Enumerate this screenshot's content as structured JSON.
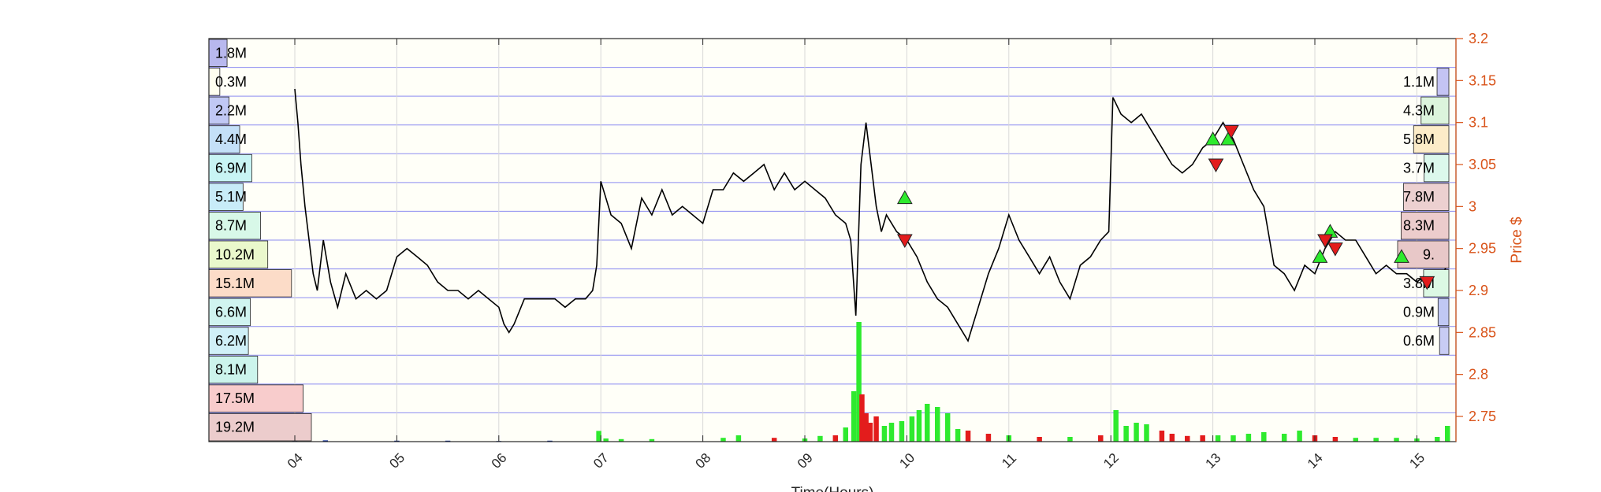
{
  "chart_data": {
    "type": "line",
    "xlabel": "Time(Hours)",
    "ylabel": "Price $",
    "x_ticks": [
      "04",
      "05",
      "06",
      "07",
      "08",
      "09",
      "10",
      "11",
      "12",
      "13",
      "14",
      "15"
    ],
    "xlim": [
      3.15,
      15.45
    ],
    "ylim": [
      2.72,
      3.2
    ],
    "y_ticks": [
      2.75,
      2.8,
      2.85,
      2.9,
      2.95,
      3.0,
      3.05,
      3.1,
      3.15,
      3.2
    ],
    "grid": true,
    "price_series": {
      "name": "",
      "x": [
        4.0,
        4.03,
        4.06,
        4.1,
        4.14,
        4.18,
        4.22,
        4.28,
        4.35,
        4.42,
        4.5,
        4.6,
        4.7,
        4.8,
        4.9,
        5.0,
        5.1,
        5.2,
        5.3,
        5.4,
        5.5,
        5.6,
        5.7,
        5.8,
        5.9,
        6.0,
        6.05,
        6.1,
        6.15,
        6.25,
        6.35,
        6.45,
        6.55,
        6.65,
        6.75,
        6.85,
        6.92,
        6.96,
        7.0,
        7.1,
        7.2,
        7.3,
        7.4,
        7.5,
        7.6,
        7.7,
        7.8,
        7.9,
        8.0,
        8.1,
        8.2,
        8.3,
        8.4,
        8.5,
        8.6,
        8.7,
        8.8,
        8.9,
        9.0,
        9.1,
        9.2,
        9.3,
        9.4,
        9.45,
        9.5,
        9.55,
        9.6,
        9.65,
        9.7,
        9.75,
        9.8,
        9.9,
        10.0,
        10.1,
        10.2,
        10.3,
        10.4,
        10.5,
        10.6,
        10.7,
        10.8,
        10.9,
        11.0,
        11.1,
        11.2,
        11.3,
        11.4,
        11.5,
        11.6,
        11.7,
        11.8,
        11.9,
        11.98,
        12.02,
        12.1,
        12.2,
        12.3,
        12.4,
        12.5,
        12.6,
        12.7,
        12.8,
        12.9,
        13.0,
        13.1,
        13.2,
        13.3,
        13.4,
        13.5,
        13.6,
        13.7,
        13.8,
        13.9,
        14.0,
        14.1,
        14.2,
        14.3,
        14.4,
        14.5,
        14.6,
        14.7,
        14.8,
        14.9,
        15.0,
        15.1,
        15.2,
        15.3
      ],
      "y": [
        3.14,
        3.1,
        3.05,
        3.0,
        2.96,
        2.92,
        2.9,
        2.96,
        2.91,
        2.88,
        2.92,
        2.89,
        2.9,
        2.89,
        2.9,
        2.94,
        2.95,
        2.94,
        2.93,
        2.91,
        2.9,
        2.9,
        2.89,
        2.9,
        2.89,
        2.88,
        2.86,
        2.85,
        2.86,
        2.89,
        2.89,
        2.89,
        2.89,
        2.88,
        2.89,
        2.89,
        2.9,
        2.93,
        3.03,
        2.99,
        2.98,
        2.95,
        3.01,
        2.99,
        3.02,
        2.99,
        3.0,
        2.99,
        2.98,
        3.02,
        3.02,
        3.04,
        3.03,
        3.04,
        3.05,
        3.02,
        3.04,
        3.02,
        3.03,
        3.02,
        3.01,
        2.99,
        2.98,
        2.96,
        2.87,
        3.05,
        3.1,
        3.05,
        3.0,
        2.97,
        2.99,
        2.97,
        2.96,
        2.94,
        2.91,
        2.89,
        2.88,
        2.86,
        2.84,
        2.88,
        2.92,
        2.95,
        2.99,
        2.96,
        2.94,
        2.92,
        2.94,
        2.91,
        2.89,
        2.93,
        2.94,
        2.96,
        2.97,
        3.13,
        3.11,
        3.1,
        3.11,
        3.09,
        3.07,
        3.05,
        3.04,
        3.05,
        3.07,
        3.08,
        3.1,
        3.08,
        3.05,
        3.02,
        3.0,
        2.93,
        2.92,
        2.9,
        2.93,
        2.92,
        2.95,
        2.97,
        2.96,
        2.96,
        2.94,
        2.92,
        2.93,
        2.92,
        2.92,
        2.91,
        2.92,
        2.91,
        2.93
      ]
    },
    "buy_markers": {
      "x": [
        9.98,
        13.0,
        13.15,
        14.05,
        14.15,
        14.85
      ],
      "y": [
        3.01,
        3.08,
        3.08,
        2.94,
        2.97,
        2.94
      ]
    },
    "sell_markers": {
      "x": [
        9.98,
        13.03,
        13.18,
        14.1,
        14.2,
        15.1
      ],
      "y": [
        2.96,
        3.05,
        3.09,
        2.96,
        2.95,
        2.91
      ]
    },
    "volume_bars": {
      "bar_width": 0.05,
      "x": [
        4.0,
        4.3,
        5.0,
        5.5,
        6.0,
        6.5,
        6.98,
        7.05,
        7.2,
        7.5,
        8.2,
        8.35,
        8.7,
        9.0,
        9.15,
        9.3,
        9.4,
        9.48,
        9.53,
        9.56,
        9.6,
        9.64,
        9.7,
        9.78,
        9.85,
        9.95,
        10.05,
        10.12,
        10.2,
        10.3,
        10.4,
        10.5,
        10.6,
        10.8,
        11.0,
        11.3,
        11.6,
        11.9,
        12.05,
        12.15,
        12.25,
        12.35,
        12.5,
        12.6,
        12.75,
        12.9,
        13.05,
        13.2,
        13.35,
        13.5,
        13.7,
        13.85,
        14.0,
        14.2,
        14.4,
        14.6,
        14.8,
        15.0,
        15.2,
        15.3
      ],
      "values": [
        0.006,
        0.004,
        0.003,
        0.003,
        0.002,
        0.003,
        0.034,
        0.01,
        0.008,
        0.008,
        0.012,
        0.02,
        0.012,
        0.01,
        0.018,
        0.02,
        0.045,
        0.16,
        0.38,
        0.15,
        0.09,
        0.06,
        0.08,
        0.05,
        0.06,
        0.065,
        0.08,
        0.1,
        0.12,
        0.11,
        0.09,
        0.04,
        0.035,
        0.025,
        0.02,
        0.015,
        0.015,
        0.02,
        0.1,
        0.05,
        0.06,
        0.055,
        0.035,
        0.025,
        0.018,
        0.02,
        0.02,
        0.02,
        0.025,
        0.03,
        0.025,
        0.035,
        0.02,
        0.015,
        0.012,
        0.012,
        0.012,
        0.01,
        0.015,
        0.05
      ],
      "colors": [
        "#0b2a9a",
        "#0b2a9a",
        "#0b2a9a",
        "#0b2a9a",
        "#0b2a9a",
        "#0b2a9a",
        "#2eea2e",
        "#2eea2e",
        "#2eea2e",
        "#2eea2e",
        "#2eea2e",
        "#2eea2e",
        "#e31c1c",
        "#2eea2e",
        "#2eea2e",
        "#e31c1c",
        "#2eea2e",
        "#2eea2e",
        "#2eea2e",
        "#e31c1c",
        "#e31c1c",
        "#e31c1c",
        "#e31c1c",
        "#2eea2e",
        "#2eea2e",
        "#2eea2e",
        "#2eea2e",
        "#2eea2e",
        "#2eea2e",
        "#2eea2e",
        "#2eea2e",
        "#2eea2e",
        "#e31c1c",
        "#e31c1c",
        "#2eea2e",
        "#e31c1c",
        "#2eea2e",
        "#e31c1c",
        "#2eea2e",
        "#2eea2e",
        "#2eea2e",
        "#2eea2e",
        "#e31c1c",
        "#e31c1c",
        "#e31c1c",
        "#e31c1c",
        "#2eea2e",
        "#2eea2e",
        "#2eea2e",
        "#2eea2e",
        "#2eea2e",
        "#2eea2e",
        "#e31c1c",
        "#e31c1c",
        "#2eea2e",
        "#2eea2e",
        "#2eea2e",
        "#2eea2e",
        "#2eea2e",
        "#2eea2e"
      ]
    },
    "volume_profile_left": {
      "labels": [
        "1.8M",
        "0.3M",
        "2.2M",
        "4.4M",
        "6.9M",
        "5.1M",
        "8.7M",
        "10.2M",
        "15.1M",
        "6.6M",
        "6.2M",
        "8.1M",
        "17.5M",
        "19.2M"
      ],
      "values": [
        1.8,
        0.3,
        2.2,
        4.4,
        6.9,
        5.1,
        8.7,
        10.2,
        15.1,
        6.6,
        6.2,
        8.1,
        17.5,
        19.2
      ],
      "colors": [
        "#b8b8ee",
        "#fffff0",
        "#c0c8f4",
        "#c4e0f8",
        "#c8f4f4",
        "#c8ecf8",
        "#d8f8e8",
        "#eaf8cc",
        "#fcdcc8",
        "#d0f4f0",
        "#d0f0f8",
        "#ccf4ec",
        "#f8cccc",
        "#eccccc"
      ]
    },
    "volume_profile_right": {
      "labels": [
        "1.1M",
        "4.3M",
        "5.8M",
        "3.7M",
        "7.8M",
        "8.3M",
        "9.",
        "3.8M",
        "0.9M",
        "0.6M"
      ],
      "values": [
        1.1,
        4.3,
        5.8,
        3.7,
        7.8,
        8.3,
        9.0,
        3.8,
        0.9,
        0.6
      ],
      "colors": [
        "#c4c4f4",
        "#dcf4dc",
        "#fcecc8",
        "#dcf8ec",
        "#ecd0d0",
        "#eccccc",
        "#e8c8c8",
        "#dcf8e4",
        "#c0c8f4",
        "#c8ccf4"
      ]
    },
    "colors": {
      "price_line": "#000000",
      "buy": "#2eea2e",
      "sell": "#e31c1c",
      "price_axis": "#d95319",
      "grid": "#7070f0",
      "volume_green": "#2eea2e",
      "volume_red": "#e31c1c",
      "volume_blue": "#0b2a9a",
      "plot_bg": "#fffff8"
    }
  }
}
